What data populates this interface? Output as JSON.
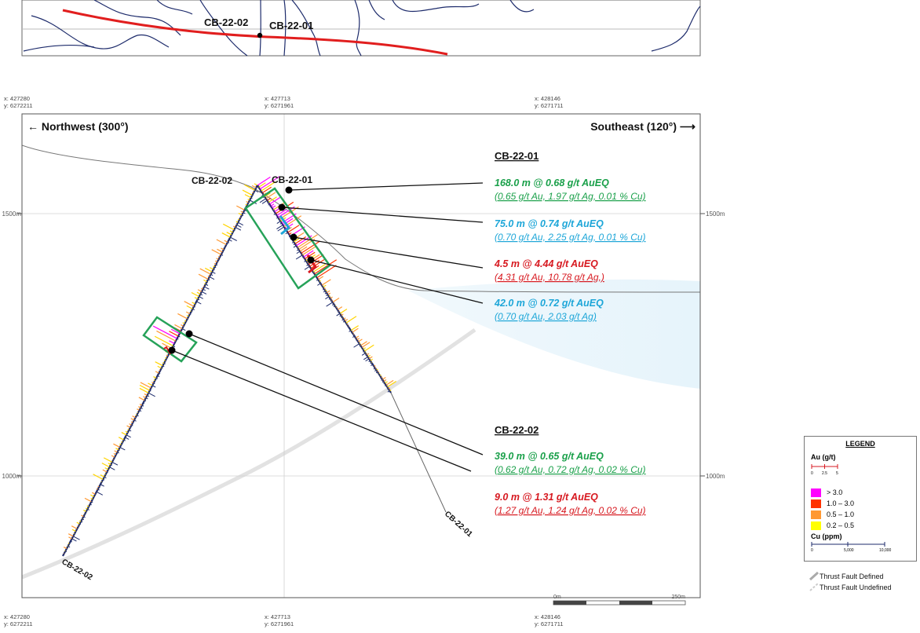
{
  "inset": {
    "hole_labels": [
      "CB-22-02",
      "CB-22-01"
    ]
  },
  "coords": {
    "c1": {
      "x": "x: 427280",
      "y": "y: 6272211"
    },
    "c2": {
      "x": "x: 427713",
      "y": "y: 6271961"
    },
    "c3": {
      "x": "x: 428146",
      "y": "y: 6271711"
    }
  },
  "directions": {
    "left": "← Northwest (300°)",
    "right": "Southeast (120°) ⟶"
  },
  "elevations": {
    "e1500": "1500m",
    "e1000": "1000m"
  },
  "section": {
    "hole_labels": {
      "top_left": "CB-22-02",
      "top_right": "CB-22-01",
      "bottom_right": "CB-22-01",
      "bottom_left": "CB-22-02"
    },
    "hole1_title": "CB-22-01",
    "hole2_title": "CB-22-02"
  },
  "intercepts": [
    {
      "main": "168.0 m @ 0.68 g/t AuEQ",
      "detail": "(0.65 g/t Au, 1.97 g/t Ag, 0.01 % Cu)",
      "color": "#1aa04a"
    },
    {
      "main": "75.0 m @ 0.74 g/t AuEQ",
      "detail": "(0.70 g/t Au, 2.25 g/t Ag, 0.01 % Cu)",
      "color": "#1da6d8"
    },
    {
      "main": "4.5 m @ 4.44 g/t AuEQ",
      "detail": "(4.31 g/t Au, 10.78 g/t Ag,)",
      "color": "#d71920"
    },
    {
      "main": "42.0 m @ 0.72 g/t AuEQ",
      "detail": "(0.70 g/t Au, 2.03 g/t Ag)",
      "color": "#1da6d8"
    },
    {
      "main": "39.0 m @ 0.65 g/t AuEQ",
      "detail": "(0.62 g/t Au, 0.72 g/t Ag, 0.02 % Cu)",
      "color": "#1aa04a"
    },
    {
      "main": "9.0 m @ 1.31 g/t AuEQ",
      "detail": "(1.27 g/t Au, 1.24 g/t Ag, 0.02 % Cu)",
      "color": "#d71920"
    }
  ],
  "scale": {
    "start": "0m",
    "end": "250m"
  },
  "legend": {
    "title": "LEGEND",
    "au_title": "Au (g/t)",
    "au_ticks": [
      "0",
      "2.5",
      "5"
    ],
    "au_classes": [
      {
        "label": "> 3.0",
        "color": "#ff00ff"
      },
      {
        "label": "1.0 – 3.0",
        "color": "#ff3300"
      },
      {
        "label": "0.5 – 1.0",
        "color": "#ff9933"
      },
      {
        "label": "0.2 – 0.5",
        "color": "#ffff00"
      }
    ],
    "cu_title": "Cu (ppm)",
    "cu_ticks": [
      "0",
      "5,000",
      "10,000"
    ],
    "fault_defined": "Thrust Fault Defined",
    "fault_undefined": "Thrust Fault Undefined"
  }
}
